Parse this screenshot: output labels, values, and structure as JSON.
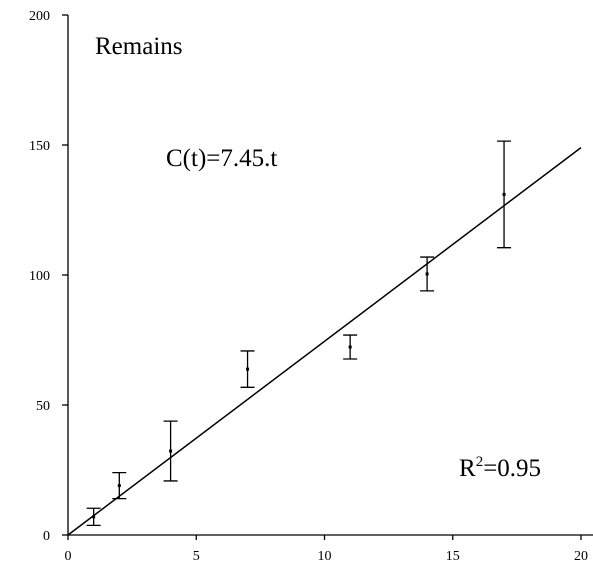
{
  "chart_data": {
    "type": "scatter",
    "x": [
      1,
      2,
      4,
      7,
      11,
      14,
      17
    ],
    "values": [
      7,
      19,
      32.3,
      63.8,
      72.3,
      100.4,
      131
    ],
    "errors": [
      3.3,
      5,
      11.5,
      7,
      4.6,
      6.5,
      20.5
    ],
    "fit": {
      "x": [
        0,
        20
      ],
      "values": [
        0,
        149
      ]
    },
    "xlim": [
      0,
      20
    ],
    "xticks": [
      0,
      5,
      10,
      15,
      20
    ],
    "ylim": [
      0,
      200
    ],
    "yticks": [
      0,
      50,
      100,
      150,
      200
    ],
    "title": "Remains",
    "equation": "C(t)=7.45.t",
    "r_squared": {
      "base": "R",
      "sup": "2",
      "rest": "=0.95"
    }
  }
}
